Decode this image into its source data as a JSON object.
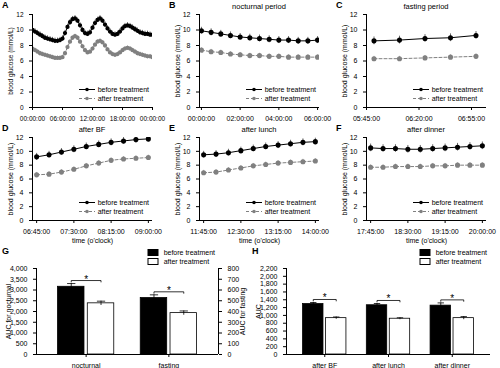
{
  "chart_data": [
    {
      "panel": "A",
      "type": "line",
      "x": [
        0,
        30,
        60,
        90,
        120,
        150,
        180,
        210,
        240,
        270,
        300,
        330,
        360,
        390,
        420,
        450,
        480,
        510,
        540,
        570,
        600,
        630,
        660,
        690,
        720,
        750,
        780,
        810,
        840,
        870,
        900,
        930,
        960,
        990,
        1020,
        1050,
        1080,
        1110,
        1140,
        1170,
        1200,
        1230,
        1260,
        1290,
        1320,
        1350,
        1380,
        1410,
        1440
      ],
      "xlim": [
        0,
        1440
      ],
      "xticks": [
        {
          "value": 0,
          "label": "00:00:00"
        },
        {
          "value": 360,
          "label": "06:00:00"
        },
        {
          "value": 720,
          "label": "12:00:00"
        },
        {
          "value": 1080,
          "label": "18:00:00"
        },
        {
          "value": 1440,
          "label": "00:00:00"
        }
      ],
      "ylim": [
        0,
        12
      ],
      "yticks": [
        0,
        2,
        4,
        6,
        8,
        10,
        12
      ],
      "y_label": "blood glucose (mmol/L)",
      "series": [
        {
          "name": "before treatment",
          "color": "#000000",
          "line_style": "solid",
          "marker": "circle",
          "values": [
            10.0,
            9.8,
            9.6,
            9.4,
            9.2,
            9.0,
            8.9,
            8.8,
            8.7,
            8.6,
            8.6,
            8.7,
            8.9,
            9.6,
            10.4,
            11.0,
            11.4,
            11.5,
            11.2,
            10.6,
            10.0,
            9.6,
            9.5,
            9.7,
            10.3,
            10.9,
            11.3,
            11.5,
            11.2,
            10.7,
            10.2,
            9.8,
            9.5,
            9.4,
            9.5,
            9.8,
            10.2,
            10.5,
            10.6,
            10.5,
            10.3,
            10.1,
            9.9,
            9.7,
            9.6,
            9.5,
            9.5,
            9.4,
            9.4
          ],
          "errors": [
            0.35,
            0.35,
            0.35,
            0.35,
            0.35,
            0.35,
            0.35,
            0.35,
            0.35,
            0.35,
            0.35,
            0.35,
            0.35,
            0.35,
            0.35,
            0.35,
            0.35,
            0.35,
            0.35,
            0.35,
            0.35,
            0.35,
            0.35,
            0.35,
            0.35,
            0.35,
            0.35,
            0.35,
            0.35,
            0.35,
            0.35,
            0.35,
            0.35,
            0.35,
            0.35,
            0.35,
            0.35,
            0.35,
            0.35,
            0.35,
            0.35,
            0.35,
            0.35,
            0.35,
            0.35,
            0.35,
            0.35,
            0.35,
            0.35
          ]
        },
        {
          "name": "after treatment",
          "color": "#808080",
          "line_style": "dashed",
          "marker": "circle",
          "values": [
            7.6,
            7.4,
            7.2,
            7.0,
            6.9,
            6.8,
            6.7,
            6.6,
            6.5,
            6.4,
            6.4,
            6.4,
            6.5,
            7.0,
            7.8,
            8.5,
            9.0,
            9.2,
            9.0,
            8.5,
            7.9,
            7.4,
            7.1,
            7.2,
            7.6,
            8.1,
            8.5,
            8.6,
            8.4,
            8.0,
            7.5,
            7.1,
            6.9,
            6.8,
            6.9,
            7.1,
            7.4,
            7.6,
            7.7,
            7.6,
            7.4,
            7.2,
            7.0,
            6.9,
            6.8,
            6.7,
            6.6,
            6.6,
            6.5
          ],
          "errors": [
            0.25,
            0.25,
            0.25,
            0.25,
            0.25,
            0.25,
            0.25,
            0.25,
            0.25,
            0.25,
            0.25,
            0.25,
            0.25,
            0.25,
            0.25,
            0.25,
            0.25,
            0.25,
            0.25,
            0.25,
            0.25,
            0.25,
            0.25,
            0.25,
            0.25,
            0.25,
            0.25,
            0.25,
            0.25,
            0.25,
            0.25,
            0.25,
            0.25,
            0.25,
            0.25,
            0.25,
            0.25,
            0.25,
            0.25,
            0.25,
            0.25,
            0.25,
            0.25,
            0.25,
            0.25,
            0.25,
            0.25,
            0.25,
            0.25
          ]
        }
      ],
      "legend": "bottom-right",
      "grid": false
    },
    {
      "panel": "B",
      "type": "line",
      "title": "nocturnal period",
      "x": [
        0,
        30,
        60,
        90,
        120,
        150,
        180,
        210,
        240,
        270,
        300,
        330,
        360
      ],
      "xlim": [
        -6,
        366
      ],
      "xticks": [
        {
          "value": 0,
          "label": "00:00:00"
        },
        {
          "value": 120,
          "label": "02:00:00"
        },
        {
          "value": 240,
          "label": "04:00:00"
        },
        {
          "value": 360,
          "label": "06:00:00"
        }
      ],
      "ylim": [
        0,
        12
      ],
      "yticks": [
        0,
        2,
        4,
        6,
        8,
        10,
        12
      ],
      "y_label": "blood glucose (mmol/L)",
      "series": [
        {
          "name": "before treatment",
          "color": "#000000",
          "line_style": "solid",
          "marker": "circle",
          "values": [
            9.9,
            9.7,
            9.5,
            9.3,
            9.1,
            9.0,
            8.9,
            8.8,
            8.7,
            8.7,
            8.6,
            8.6,
            8.7
          ],
          "errors": [
            0.45,
            0.45,
            0.45,
            0.45,
            0.45,
            0.45,
            0.45,
            0.45,
            0.45,
            0.45,
            0.45,
            0.45,
            0.45
          ]
        },
        {
          "name": "after treatment",
          "color": "#808080",
          "line_style": "dashed",
          "marker": "circle",
          "values": [
            7.4,
            7.2,
            7.1,
            6.9,
            6.8,
            6.7,
            6.7,
            6.6,
            6.6,
            6.5,
            6.5,
            6.5,
            6.5
          ],
          "errors": [
            0.3,
            0.3,
            0.3,
            0.3,
            0.3,
            0.3,
            0.3,
            0.3,
            0.3,
            0.3,
            0.3,
            0.3,
            0.3
          ]
        }
      ],
      "legend": "bottom-right",
      "grid": false
    },
    {
      "panel": "C",
      "type": "line",
      "title": "fasting period",
      "x": [
        350,
        367,
        384,
        401,
        418
      ],
      "xlim": [
        345,
        425
      ],
      "xticks": [
        {
          "value": 345,
          "label": "05:45:00"
        },
        {
          "value": 380,
          "label": "06:20:00"
        },
        {
          "value": 415,
          "label": "06:55:00"
        }
      ],
      "ylim": [
        0,
        12
      ],
      "yticks": [
        0,
        2,
        4,
        6,
        8,
        10,
        12
      ],
      "y_label": "blood glucose (mmol/L)",
      "series": [
        {
          "name": "before treatment",
          "color": "#000000",
          "line_style": "solid",
          "marker": "circle",
          "values": [
            8.6,
            8.7,
            8.9,
            9.0,
            9.3
          ],
          "errors": [
            0.5,
            0.5,
            0.5,
            0.5,
            0.5
          ]
        },
        {
          "name": "after treatment",
          "color": "#808080",
          "line_style": "dashed",
          "marker": "circle",
          "values": [
            6.3,
            6.3,
            6.4,
            6.5,
            6.6
          ],
          "errors": [
            0.3,
            0.3,
            0.3,
            0.3,
            0.3
          ]
        }
      ],
      "legend": "bottom-right",
      "grid": false
    },
    {
      "panel": "D",
      "type": "line",
      "title": "after BF",
      "x": [
        405,
        420,
        435,
        450,
        465,
        480,
        495,
        510,
        525,
        540
      ],
      "xlim": [
        400,
        545
      ],
      "xticks": [
        {
          "value": 405,
          "label": "06:45:00"
        },
        {
          "value": 450,
          "label": "07:30:00"
        },
        {
          "value": 495,
          "label": "08:15:00"
        },
        {
          "value": 540,
          "label": "09:00:00"
        }
      ],
      "ylim": [
        0,
        12
      ],
      "yticks": [
        0,
        2,
        4,
        6,
        8,
        10,
        12
      ],
      "x_label": "time (o'clock)",
      "y_label": "blood glucose (mmol/L)",
      "series": [
        {
          "name": "before treatment",
          "color": "#000000",
          "line_style": "solid",
          "marker": "circle",
          "values": [
            9.2,
            9.5,
            9.9,
            10.3,
            10.7,
            11.0,
            11.3,
            11.5,
            11.7,
            11.8
          ],
          "errors": [
            0.5,
            0.5,
            0.5,
            0.5,
            0.5,
            0.5,
            0.5,
            0.5,
            0.5,
            0.5
          ]
        },
        {
          "name": "after treatment",
          "color": "#808080",
          "line_style": "dashed",
          "marker": "circle",
          "values": [
            6.6,
            6.7,
            7.0,
            7.4,
            7.9,
            8.3,
            8.7,
            8.9,
            9.0,
            9.1
          ],
          "errors": [
            0.35,
            0.35,
            0.35,
            0.35,
            0.35,
            0.35,
            0.35,
            0.35,
            0.35,
            0.35
          ]
        }
      ],
      "legend": "bottom-right",
      "grid": false
    },
    {
      "panel": "E",
      "type": "line",
      "title": "after lunch",
      "x": [
        705,
        720,
        735,
        750,
        765,
        780,
        795,
        810,
        825,
        840
      ],
      "xlim": [
        700,
        845
      ],
      "xticks": [
        {
          "value": 705,
          "label": "11:45:00"
        },
        {
          "value": 750,
          "label": "12:30:00"
        },
        {
          "value": 795,
          "label": "13:15:00"
        },
        {
          "value": 840,
          "label": "14:00:00"
        }
      ],
      "ylim": [
        0,
        12
      ],
      "yticks": [
        0,
        2,
        4,
        6,
        8,
        10,
        12
      ],
      "x_label": "time (o'clock)",
      "y_label": "blood glucose (mmol/L)",
      "series": [
        {
          "name": "before treatment",
          "color": "#000000",
          "line_style": "solid",
          "marker": "circle",
          "values": [
            9.5,
            9.6,
            9.8,
            10.1,
            10.4,
            10.7,
            10.9,
            11.1,
            11.3,
            11.4
          ],
          "errors": [
            0.5,
            0.5,
            0.5,
            0.5,
            0.5,
            0.5,
            0.5,
            0.5,
            0.5,
            0.5
          ]
        },
        {
          "name": "after treatment",
          "color": "#808080",
          "line_style": "dashed",
          "marker": "circle",
          "values": [
            6.9,
            7.0,
            7.3,
            7.6,
            7.9,
            8.1,
            8.3,
            8.4,
            8.5,
            8.6
          ],
          "errors": [
            0.35,
            0.35,
            0.35,
            0.35,
            0.35,
            0.35,
            0.35,
            0.35,
            0.35,
            0.35
          ]
        }
      ],
      "legend": "bottom-right",
      "grid": false
    },
    {
      "panel": "F",
      "type": "line",
      "title": "after dinner",
      "x": [
        1065,
        1080,
        1095,
        1110,
        1125,
        1140,
        1155,
        1170,
        1185,
        1200
      ],
      "xlim": [
        1060,
        1205
      ],
      "xticks": [
        {
          "value": 1065,
          "label": "17:45:00"
        },
        {
          "value": 1110,
          "label": "18:30:00"
        },
        {
          "value": 1155,
          "label": "19:15:00"
        },
        {
          "value": 1200,
          "label": "20:00:00"
        }
      ],
      "ylim": [
        0,
        12
      ],
      "yticks": [
        0,
        2,
        4,
        6,
        8,
        10,
        12
      ],
      "x_label": "time (o'clock)",
      "y_label": "blood glucose (mmol/L)",
      "series": [
        {
          "name": "before treatment",
          "color": "#000000",
          "line_style": "solid",
          "marker": "circle",
          "values": [
            10.5,
            10.4,
            10.4,
            10.3,
            10.3,
            10.4,
            10.5,
            10.6,
            10.7,
            10.8
          ],
          "errors": [
            0.55,
            0.55,
            0.55,
            0.55,
            0.55,
            0.55,
            0.55,
            0.55,
            0.55,
            0.55
          ]
        },
        {
          "name": "after treatment",
          "color": "#808080",
          "line_style": "dashed",
          "marker": "circle",
          "values": [
            7.7,
            7.7,
            7.8,
            7.8,
            7.8,
            7.9,
            7.9,
            8.0,
            8.0,
            8.0
          ],
          "errors": [
            0.35,
            0.35,
            0.35,
            0.35,
            0.35,
            0.35,
            0.35,
            0.35,
            0.35,
            0.35
          ]
        }
      ],
      "legend": "bottom-right",
      "grid": false
    },
    {
      "panel": "G",
      "type": "bar",
      "categories": [
        "nocturnal",
        "fasting"
      ],
      "ylim": [
        0,
        4000
      ],
      "yticks": [
        0,
        500,
        1000,
        1500,
        2000,
        2500,
        3000,
        3500,
        4000
      ],
      "y2lim": [
        0,
        800
      ],
      "y2ticks": [
        0,
        100,
        200,
        300,
        400,
        500,
        600,
        700,
        800
      ],
      "y_label": "AUC for nocturnal",
      "y2_label": "AUC for fasting",
      "series": [
        {
          "name": "before treatment",
          "color": "#000000",
          "values": [
            3150,
            null
          ],
          "errors": [
            150,
            null
          ]
        },
        {
          "name": "after treatment",
          "color": "#ffffff",
          "values": [
            2380,
            null
          ],
          "errors": [
            100,
            null
          ]
        },
        {
          "name": "before treatment",
          "color": "#000000",
          "axis": "y2",
          "values": [
            null,
            525
          ],
          "errors": [
            null,
            30
          ]
        },
        {
          "name": "after treatment",
          "color": "#ffffff",
          "axis": "y2",
          "values": [
            null,
            385
          ],
          "errors": [
            null,
            20
          ]
        }
      ],
      "annotations": [
        "*",
        "*"
      ],
      "legend": "top-right",
      "grid": false
    },
    {
      "panel": "H",
      "type": "bar",
      "categories": [
        "after BF",
        "after lunch",
        "after dinner"
      ],
      "ylim": [
        0,
        2200
      ],
      "yticks": [
        0,
        200,
        400,
        600,
        800,
        1000,
        1200,
        1400,
        1600,
        1800,
        2000,
        2200
      ],
      "y_label": "AUC",
      "series": [
        {
          "name": "before treatment",
          "color": "#000000",
          "values": [
            1290,
            1260,
            1250
          ],
          "errors": [
            40,
            45,
            70
          ]
        },
        {
          "name": "after treatment",
          "color": "#ffffff",
          "values": [
            930,
            915,
            930
          ],
          "errors": [
            30,
            25,
            40
          ]
        }
      ],
      "annotations": [
        "*",
        "*",
        "*"
      ],
      "legend": "top-right",
      "grid": false
    }
  ]
}
